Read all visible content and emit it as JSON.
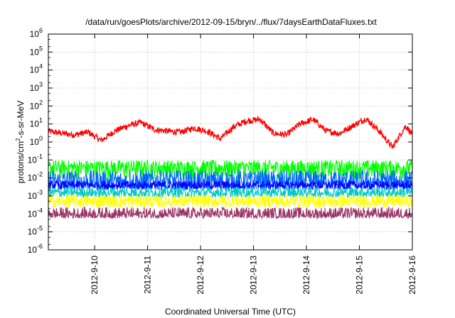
{
  "chart_data": {
    "type": "line",
    "title": "/data/run/goesPlots/archive/2012-09-15/bryn/../flux/7daysEarthDataFluxes.txt",
    "xlabel": "Coordinated Universal Time (UTC)",
    "ylabel_parts": [
      "protons/cm",
      "2",
      "-s-sr-MeV"
    ],
    "y_scale": "log",
    "ylim": [
      1e-06,
      1000000.0
    ],
    "y_ticks": [
      {
        "base": "10",
        "exp": "-6",
        "value": 1e-06
      },
      {
        "base": "10",
        "exp": "-5",
        "value": 1e-05
      },
      {
        "base": "10",
        "exp": "-4",
        "value": 0.0001
      },
      {
        "base": "10",
        "exp": "-3",
        "value": 0.001
      },
      {
        "base": "10",
        "exp": "-2",
        "value": 0.01
      },
      {
        "base": "10",
        "exp": "-1",
        "value": 0.1
      },
      {
        "base": "10",
        "exp": "0",
        "value": 1
      },
      {
        "base": "10",
        "exp": "1",
        "value": 10
      },
      {
        "base": "10",
        "exp": "2",
        "value": 100
      },
      {
        "base": "10",
        "exp": "3",
        "value": 1000
      },
      {
        "base": "10",
        "exp": "4",
        "value": 10000
      },
      {
        "base": "10",
        "exp": "5",
        "value": 100000
      },
      {
        "base": "10",
        "exp": "6",
        "value": 1000000
      }
    ],
    "xlim": [
      "2012-09-09T03:00",
      "2012-09-16T00:00"
    ],
    "x_ticks": [
      "2012-9-10",
      "2012-9-11",
      "2012-9-12",
      "2012-9-13",
      "2012-9-14",
      "2012-9-15",
      "2012-9-16"
    ],
    "grid": true,
    "series": [
      {
        "color": "#ff0000",
        "x": [
          "2012-09-09T03:00",
          "2012-09-09T09:00",
          "2012-09-09T15:00",
          "2012-09-09T21:00",
          "2012-09-10T03:00",
          "2012-09-10T09:00",
          "2012-09-10T15:00",
          "2012-09-10T21:00",
          "2012-09-11T03:00",
          "2012-09-11T09:00",
          "2012-09-11T15:00",
          "2012-09-11T21:00",
          "2012-09-12T03:00",
          "2012-09-12T09:00",
          "2012-09-12T15:00",
          "2012-09-12T21:00",
          "2012-09-13T03:00",
          "2012-09-13T09:00",
          "2012-09-13T15:00",
          "2012-09-13T21:00",
          "2012-09-14T03:00",
          "2012-09-14T09:00",
          "2012-09-14T15:00",
          "2012-09-14T21:00",
          "2012-09-15T03:00",
          "2012-09-15T09:00",
          "2012-09-15T15:00",
          "2012-09-15T21:00",
          "2012-09-16T00:00"
        ],
        "values": [
          4,
          3,
          2.5,
          3.5,
          1.2,
          4,
          8,
          12,
          5,
          4,
          3.5,
          6,
          4,
          1.5,
          7,
          15,
          18,
          3,
          2.5,
          10,
          18,
          4,
          3,
          8,
          20,
          4,
          0.5,
          8,
          2.5
        ]
      },
      {
        "color": "#00ff00",
        "x": [
          "2012-09-09T03:00",
          "2012-09-16T00:00"
        ],
        "values": [
          0.04,
          0.04
        ],
        "spread": [
          0.006,
          0.12
        ]
      },
      {
        "color": "#0066ff",
        "x": [
          "2012-09-09T03:00",
          "2012-09-16T00:00"
        ],
        "values": [
          0.006,
          0.006
        ],
        "spread": [
          0.0015,
          0.04
        ]
      },
      {
        "color": "#0000ff",
        "x": [
          "2012-09-09T03:00",
          "2012-09-16T00:00"
        ],
        "values": [
          0.004,
          0.004
        ],
        "spread": [
          0.002,
          0.008
        ]
      },
      {
        "color": "#00c8c8",
        "x": [
          "2012-09-09T03:00",
          "2012-09-16T00:00"
        ],
        "values": [
          0.0015,
          0.0015
        ],
        "spread": [
          0.0007,
          0.004
        ]
      },
      {
        "color": "#ffff00",
        "x": [
          "2012-09-09T03:00",
          "2012-09-16T00:00"
        ],
        "values": [
          0.0005,
          0.0005
        ],
        "spread": [
          0.00018,
          0.0015
        ]
      },
      {
        "color": "#993366",
        "x": [
          "2012-09-09T03:00",
          "2012-09-16T00:00"
        ],
        "values": [
          9e-05,
          9e-05
        ],
        "spread": [
          5e-05,
          0.0003
        ]
      }
    ]
  }
}
